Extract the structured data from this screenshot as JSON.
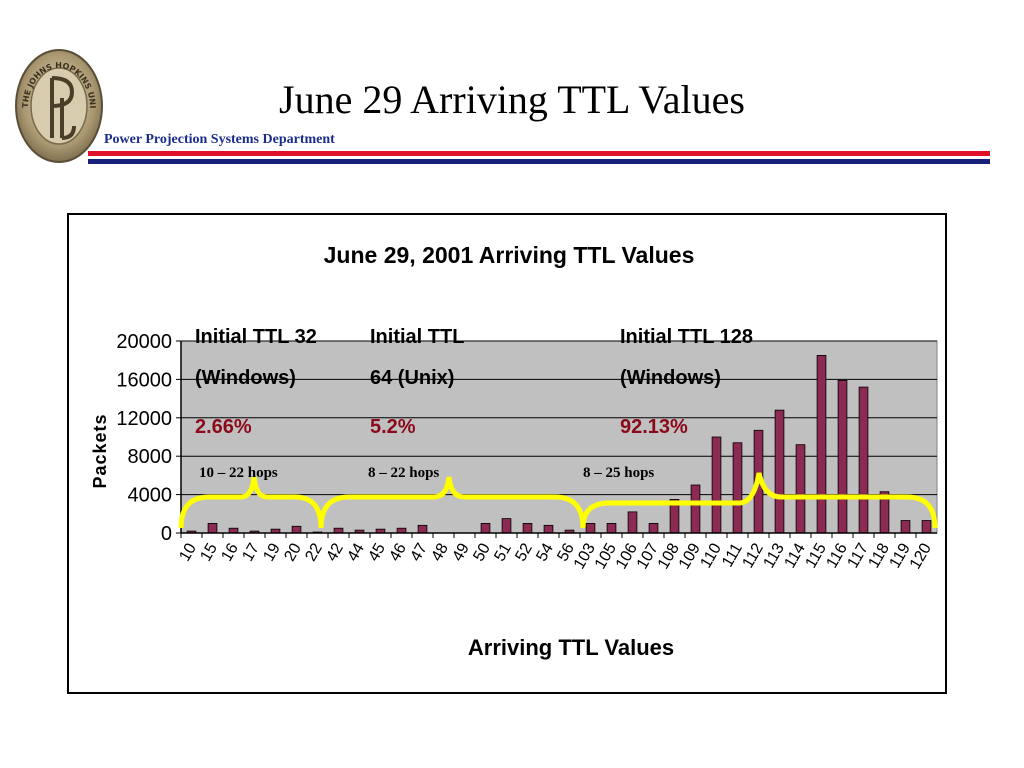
{
  "slide": {
    "title": "June 29 Arriving TTL Values",
    "department": "Power Projection Systems Department",
    "logo_text": "THE JOHNS HOPKINS UNIVERSITY"
  },
  "colors": {
    "bar_fill": "#8b2a52",
    "plot_bg": "#c0c0c0",
    "brace": "#ffff00",
    "pct_text": "#8b0a1a",
    "rule_red": "#e0102a",
    "rule_blue": "#17207a",
    "dept_text": "#1a2d8a"
  },
  "annotations": [
    {
      "title_line1": "Initial TTL 32",
      "title_line2": "(Windows)",
      "percent": "2.66%",
      "hops": "10 – 22 hops"
    },
    {
      "title_line1": "Initial TTL",
      "title_line2": "64  (Unix)",
      "percent": "5.2%",
      "hops": "8 – 22 hops"
    },
    {
      "title_line1": "Initial TTL 128",
      "title_line2": "(Windows)",
      "percent": "92.13%",
      "hops": "8 – 25 hops"
    }
  ],
  "chart_data": {
    "type": "bar",
    "title": "June 29, 2001 Arriving TTL Values",
    "xlabel": "Arriving TTL Values",
    "ylabel": "Packets",
    "ylim": [
      0,
      20000
    ],
    "yticks": [
      "0",
      "4000",
      "8000",
      "12000",
      "16000",
      "20000"
    ],
    "grid": true,
    "categories": [
      "10",
      "15",
      "16",
      "17",
      "19",
      "20",
      "22",
      "42",
      "44",
      "45",
      "46",
      "47",
      "48",
      "49",
      "50",
      "51",
      "52",
      "54",
      "56",
      "103",
      "105",
      "106",
      "107",
      "108",
      "109",
      "110",
      "111",
      "112",
      "113",
      "114",
      "115",
      "116",
      "117",
      "118",
      "119",
      "120"
    ],
    "values": [
      200,
      1000,
      500,
      200,
      400,
      700,
      100,
      500,
      300,
      400,
      500,
      800,
      0,
      0,
      1000,
      1500,
      1000,
      800,
      300,
      1000,
      1000,
      2200,
      1000,
      3500,
      5000,
      10000,
      9400,
      10700,
      12800,
      9200,
      18500,
      15900,
      15200,
      4300,
      1300,
      1300
    ]
  }
}
